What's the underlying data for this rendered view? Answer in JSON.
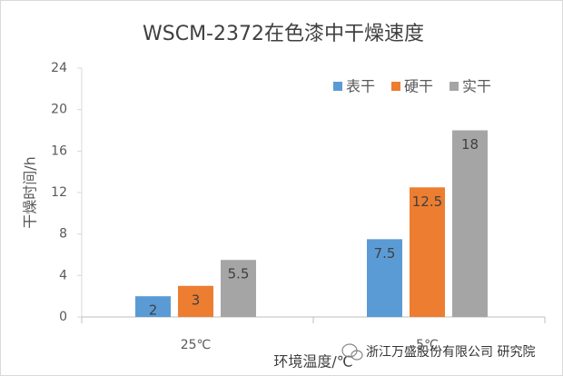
{
  "chart_data": {
    "type": "bar",
    "title": "WSCM-2372在色漆中干燥速度",
    "y_label": "干燥时间/h",
    "x_label": "环境温度/℃",
    "categories": [
      "25℃",
      "5℃"
    ],
    "series": [
      {
        "name": "表干",
        "color": "#5b9bd5",
        "values": [
          2,
          7.5
        ]
      },
      {
        "name": "硬干",
        "color": "#ed7d31",
        "values": [
          3,
          12.5
        ]
      },
      {
        "name": "实干",
        "color": "#a5a5a5",
        "values": [
          5.5,
          18
        ]
      }
    ],
    "ylim": [
      0,
      24
    ],
    "yticks": [
      0,
      4,
      8,
      12,
      16,
      20,
      24
    ],
    "grid": false,
    "legend": "top-right",
    "watermark": "浙江万盛股份有限公司 研究院"
  }
}
